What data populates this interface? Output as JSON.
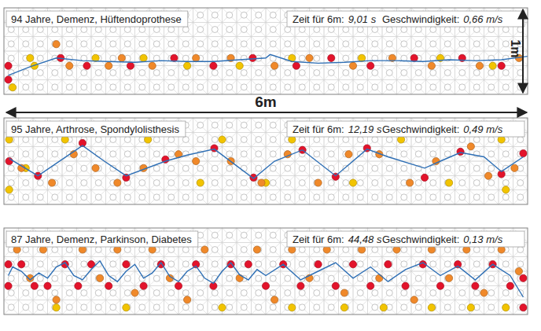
{
  "chart_data": [
    {
      "type": "scatter",
      "title": "94 Jahre, Demenz, Hüftendoprothese",
      "stats": [
        {
          "label": "Zeit für 6m:",
          "value": "9,01 s"
        },
        {
          "label": "Geschwindigkeit:",
          "value": "0,66 m/s"
        }
      ],
      "xlim": [
        0,
        6
      ],
      "ylim": [
        0,
        1
      ],
      "tick_labels": false,
      "series": [
        {
          "type": "scatter",
          "marker": "circle",
          "color": "#f2c400",
          "x": [
            0.1,
            0.3,
            0.35,
            1.05,
            1.6,
            2.1,
            2.7,
            3.3,
            4.1,
            5.0,
            5.6
          ],
          "values": [
            0.08,
            0.42,
            0.33,
            0.42,
            0.42,
            0.33,
            0.33,
            0.42,
            0.42,
            0.42,
            0.33
          ]
        },
        {
          "type": "scatter",
          "marker": "circle",
          "color": "#f0892a",
          "x": [
            0.6,
            0.75,
            1.2,
            1.35,
            1.7,
            2.2,
            2.6,
            3.1,
            3.5,
            4.0,
            4.45,
            4.9,
            5.45,
            5.9
          ],
          "values": [
            0.58,
            0.33,
            0.33,
            0.42,
            0.33,
            0.42,
            0.42,
            0.33,
            0.42,
            0.33,
            0.42,
            0.33,
            0.33,
            0.42
          ]
        },
        {
          "type": "scatter",
          "marker": "circle",
          "color": "#e3132b",
          "x": [
            0.05,
            0.05,
            0.65,
            0.95,
            1.45,
            1.95,
            2.4,
            2.85,
            3.35,
            3.75,
            4.2,
            4.7,
            5.25,
            5.7
          ],
          "values": [
            0.17,
            0.33,
            0.42,
            0.33,
            0.33,
            0.42,
            0.33,
            0.42,
            0.33,
            0.42,
            0.33,
            0.42,
            0.42,
            0.33
          ]
        },
        {
          "type": "line",
          "line_style": "solid",
          "color": "#2e6fb5",
          "x": [
            0.05,
            0.3,
            0.6,
            0.9,
            1.2,
            1.5,
            1.8,
            2.1,
            2.4,
            2.7,
            3.0,
            3.05,
            3.3,
            3.6,
            3.9,
            4.2,
            4.5,
            4.8,
            5.1,
            5.4,
            5.7,
            6.0
          ],
          "values": [
            0.22,
            0.32,
            0.42,
            0.39,
            0.38,
            0.37,
            0.39,
            0.38,
            0.38,
            0.4,
            0.42,
            0.46,
            0.38,
            0.36,
            0.37,
            0.39,
            0.39,
            0.38,
            0.4,
            0.39,
            0.4,
            0.44
          ]
        }
      ]
    },
    {
      "type": "scatter",
      "title": "95 Jahre, Arthrose, Spondylolisthesis",
      "stats": [
        {
          "label": "Zeit für 6m:",
          "value": "12,19 s"
        },
        {
          "label": "Geschwindigkeit:",
          "value": "0,49 m/s"
        }
      ],
      "xlim": [
        0,
        6
      ],
      "ylim": [
        0,
        1
      ],
      "tick_labels": false,
      "series": [
        {
          "type": "scatter",
          "marker": "circle",
          "color": "#f2c400",
          "x": [
            0.06,
            0.06,
            0.25,
            0.7,
            1.65,
            2.25,
            2.5,
            3.0,
            3.3,
            4.0,
            4.55,
            5.1,
            5.7,
            5.75
          ],
          "values": [
            0.75,
            0.17,
            0.42,
            0.75,
            0.75,
            0.25,
            0.75,
            0.25,
            0.75,
            0.25,
            0.75,
            0.25,
            0.75,
            0.17
          ]
        },
        {
          "type": "scatter",
          "marker": "circle",
          "color": "#f0892a",
          "x": [
            0.2,
            0.55,
            0.8,
            1.05,
            1.3,
            1.6,
            2.0,
            2.2,
            2.6,
            2.95,
            3.25,
            3.6,
            3.95,
            4.3,
            4.65,
            4.95,
            5.35,
            5.55,
            5.85
          ],
          "values": [
            0.42,
            0.25,
            0.58,
            0.42,
            0.25,
            0.42,
            0.58,
            0.5,
            0.5,
            0.25,
            0.58,
            0.25,
            0.58,
            0.58,
            0.25,
            0.5,
            0.67,
            0.33,
            0.42
          ]
        },
        {
          "type": "scatter",
          "marker": "circle",
          "color": "#e3132b",
          "x": [
            0.06,
            0.39,
            0.9,
            1.4,
            1.85,
            2.41,
            2.86,
            3.42,
            3.8,
            4.16,
            4.82,
            5.23,
            5.7,
            5.95
          ],
          "values": [
            0.5,
            0.33,
            0.71,
            0.31,
            0.52,
            0.65,
            0.31,
            0.63,
            0.32,
            0.65,
            0.31,
            0.61,
            0.35,
            0.59
          ]
        },
        {
          "type": "line",
          "line_style": "solid",
          "color": "#2e6fb5",
          "x": [
            0.06,
            0.39,
            0.9,
            1.15,
            1.4,
            1.85,
            2.1,
            2.41,
            2.86,
            3.1,
            3.42,
            3.8,
            4.16,
            4.4,
            4.82,
            5.0,
            5.23,
            5.5,
            5.7,
            5.95
          ],
          "values": [
            0.53,
            0.33,
            0.68,
            0.5,
            0.33,
            0.5,
            0.57,
            0.64,
            0.3,
            0.5,
            0.63,
            0.33,
            0.64,
            0.55,
            0.42,
            0.5,
            0.6,
            0.55,
            0.38,
            0.55
          ]
        }
      ]
    },
    {
      "type": "scatter",
      "title": "87 Jahre, Demenz, Parkinson, Diabetes",
      "stats": [
        {
          "label": "Zeit für 6m:",
          "value": "44,48 s"
        },
        {
          "label": "Geschwindigkeit:",
          "value": "0,13 m/s"
        }
      ],
      "xlim": [
        0,
        6
      ],
      "ylim": [
        0,
        1
      ],
      "tick_labels": false,
      "series": [
        {
          "type": "scatter",
          "marker": "circle",
          "color": "#f2c400",
          "x": [
            0.6,
            1.4,
            2.5,
            3.3,
            3.9,
            4.35,
            4.9,
            5.35,
            5.75,
            2.0,
            3.7
          ],
          "values": [
            0.08,
            0.08,
            0.08,
            0.08,
            0.08,
            0.08,
            0.08,
            0.08,
            0.08,
            0.83,
            0.83
          ]
        },
        {
          "type": "scatter",
          "marker": "circle",
          "color": "#f0892a",
          "x": [
            0.15,
            0.3,
            0.45,
            0.6,
            0.9,
            1.1,
            1.3,
            1.5,
            1.7,
            1.9,
            2.1,
            2.3,
            2.7,
            2.9,
            3.1,
            3.3,
            3.5,
            3.7,
            3.9,
            4.1,
            4.3,
            4.5,
            4.7,
            4.9,
            5.1,
            5.3,
            5.5,
            5.7,
            5.9
          ],
          "values": [
            0.75,
            0.42,
            0.75,
            0.17,
            0.75,
            0.42,
            0.75,
            0.25,
            0.75,
            0.42,
            0.17,
            0.75,
            0.42,
            0.75,
            0.17,
            0.75,
            0.42,
            0.75,
            0.25,
            0.75,
            0.42,
            0.75,
            0.17,
            0.75,
            0.42,
            0.75,
            0.25,
            0.75,
            0.5
          ]
        },
        {
          "type": "scatter",
          "marker": "circle",
          "color": "#e3132b",
          "x": [
            0.05,
            0.05,
            0.2,
            0.35,
            0.5,
            0.7,
            0.85,
            1.0,
            1.2,
            1.4,
            1.6,
            1.8,
            2.0,
            2.2,
            2.4,
            2.6,
            2.8,
            3.0,
            3.2,
            3.4,
            3.6,
            3.8,
            4.0,
            4.2,
            4.4,
            4.6,
            4.8,
            5.0,
            5.2,
            5.4,
            5.6,
            5.8,
            5.95,
            5.95
          ],
          "values": [
            0.58,
            0.33,
            0.58,
            0.33,
            0.33,
            0.58,
            0.33,
            0.58,
            0.33,
            0.58,
            0.33,
            0.58,
            0.33,
            0.58,
            0.33,
            0.58,
            0.58,
            0.33,
            0.58,
            0.33,
            0.58,
            0.33,
            0.58,
            0.33,
            0.58,
            0.33,
            0.58,
            0.33,
            0.58,
            0.33,
            0.58,
            0.33,
            0.42,
            0.08
          ]
        },
        {
          "type": "line",
          "line_style": "solid",
          "color": "#2e6fb5",
          "x": [
            0.05,
            0.1,
            0.2,
            0.3,
            0.4,
            0.5,
            0.6,
            0.7,
            0.8,
            0.9,
            1.0,
            1.1,
            1.2,
            1.3,
            1.4,
            1.5,
            1.6,
            1.7,
            1.8,
            1.9,
            2.0,
            2.1,
            2.2,
            2.3,
            2.4,
            2.5,
            2.6,
            2.7,
            2.8,
            2.9,
            3.0,
            3.2,
            3.4,
            3.6,
            3.8,
            4.0,
            4.2,
            4.4,
            4.6,
            4.8,
            5.0,
            5.2,
            5.4,
            5.6,
            5.8,
            5.95
          ],
          "values": [
            0.45,
            0.55,
            0.5,
            0.4,
            0.48,
            0.42,
            0.55,
            0.6,
            0.45,
            0.4,
            0.52,
            0.62,
            0.45,
            0.38,
            0.5,
            0.58,
            0.42,
            0.48,
            0.6,
            0.44,
            0.38,
            0.5,
            0.56,
            0.42,
            0.36,
            0.5,
            0.6,
            0.46,
            0.4,
            0.52,
            0.45,
            0.58,
            0.4,
            0.5,
            0.6,
            0.42,
            0.55,
            0.38,
            0.52,
            0.6,
            0.45,
            0.56,
            0.4,
            0.58,
            0.45,
            0.2
          ]
        }
      ]
    }
  ],
  "dimensions": {
    "width_label": "6m",
    "height_label": "1m"
  }
}
